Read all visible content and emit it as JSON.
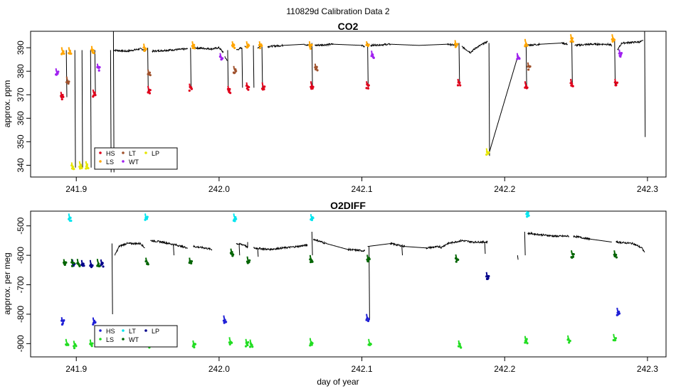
{
  "figure": {
    "title": "110829d   Calibration Data 2",
    "xlabel": "day of year"
  },
  "chart_data": [
    {
      "type": "line",
      "title": "CO2",
      "ylabel": "approx. ppm",
      "xlim": [
        241.868,
        242.313
      ],
      "ylim": [
        335,
        397
      ],
      "x_ticks": [
        "241.9",
        "242.0",
        "242.1",
        "242.2",
        "242.3"
      ],
      "y_ticks": [
        "340",
        "350",
        "360",
        "370",
        "380",
        "390"
      ],
      "legend": {
        "position": "bottom-left",
        "entries": [
          {
            "label": "HS",
            "color": "#e0001b"
          },
          {
            "label": "LT",
            "color": "#a0522d"
          },
          {
            "label": "LP",
            "color": "#e6e600"
          },
          {
            "label": "LS",
            "color": "#ffa500"
          },
          {
            "label": "WT",
            "color": "#a020f0"
          }
        ]
      },
      "series_trace": {
        "name": "sample",
        "color": "#000000",
        "segments": [
          [
            [
              241.926,
              389
            ],
            [
              241.935,
              388.5
            ],
            [
              241.945,
              389.5
            ],
            [
              241.949,
              389
            ]
          ],
          [
            [
              241.953,
              388.5
            ],
            [
              241.965,
              389
            ],
            [
              241.978,
              389.5
            ]
          ],
          [
            [
              241.982,
              390
            ],
            [
              241.995,
              389.5
            ],
            [
              242.0,
              390
            ],
            [
              242.003,
              388
            ]
          ],
          [
            [
              242.004,
              386
            ],
            [
              242.006,
              384.5
            ]
          ],
          [
            [
              242.012,
              389
            ],
            [
              242.016,
              390
            ]
          ],
          [
            [
              242.018,
              390.5
            ],
            [
              242.021,
              391
            ]
          ],
          [
            [
              242.027,
              390
            ],
            [
              242.03,
              391
            ]
          ],
          [
            [
              242.034,
              390.5
            ],
            [
              242.045,
              391
            ],
            [
              242.06,
              391.5
            ],
            [
              242.063,
              391
            ]
          ],
          [
            [
              242.067,
              391
            ],
            [
              242.08,
              391.5
            ],
            [
              242.1,
              391
            ],
            [
              242.102,
              390.5
            ]
          ],
          [
            [
              242.106,
              391
            ],
            [
              242.12,
              391.5
            ],
            [
              242.14,
              391
            ],
            [
              242.16,
              391.5
            ],
            [
              242.166,
              391
            ]
          ],
          [
            [
              242.17,
              390.5
            ],
            [
              242.176,
              388
            ],
            [
              242.18,
              390
            ],
            [
              242.186,
              392
            ],
            [
              242.188,
              392.5
            ]
          ],
          [
            [
              242.189,
              345
            ],
            [
              242.209,
              386
            ]
          ],
          [
            [
              242.215,
              391
            ],
            [
              242.225,
              391.5
            ],
            [
              242.24,
              392
            ],
            [
              242.244,
              391.5
            ]
          ],
          [
            [
              242.249,
              391
            ],
            [
              242.26,
              391.5
            ],
            [
              242.272,
              391.5
            ],
            [
              242.275,
              391
            ]
          ],
          [
            [
              242.279,
              389
            ],
            [
              242.282,
              392
            ],
            [
              242.295,
              392.5
            ],
            [
              242.297,
              393
            ]
          ]
        ],
        "drops": [
          [
            241.893,
            389,
            369
          ],
          [
            241.899,
            389,
            339
          ],
          [
            241.904,
            389,
            339
          ],
          [
            241.91,
            389,
            339
          ],
          [
            241.913,
            389,
            370
          ],
          [
            241.924,
            389,
            337
          ],
          [
            241.926,
            397,
            337
          ],
          [
            241.95,
            390,
            371
          ],
          [
            241.98,
            390,
            372
          ],
          [
            242.006,
            389,
            372
          ],
          [
            242.016,
            390,
            373
          ],
          [
            242.024,
            391,
            373
          ],
          [
            242.03,
            391,
            373
          ],
          [
            242.065,
            392,
            373
          ],
          [
            242.104,
            392,
            373
          ],
          [
            242.168,
            392,
            374
          ],
          [
            242.189,
            392,
            344
          ],
          [
            242.215,
            392,
            373
          ],
          [
            242.247,
            393,
            374
          ],
          [
            242.277,
            393,
            374
          ],
          [
            242.298,
            397,
            352
          ]
        ]
      },
      "series": [
        {
          "name": "HS",
          "color": "#e0001b",
          "x": [
            241.89,
            241.9125,
            241.951,
            241.98,
            242.007,
            242.02,
            242.031,
            242.065,
            242.104,
            242.168,
            242.215,
            242.247,
            242.278
          ],
          "y": [
            369,
            370,
            371.5,
            372.5,
            371.5,
            373,
            373,
            373.5,
            373.5,
            374.5,
            373.5,
            374.5,
            374.5
          ]
        },
        {
          "name": "LT",
          "color": "#a0522d",
          "x": [
            241.894,
            241.951,
            242.011,
            242.068,
            242.217
          ],
          "y": [
            375.5,
            378.5,
            380,
            381,
            381.5
          ]
        },
        {
          "name": "LP",
          "color": "#e6e600",
          "x": [
            241.8975,
            241.903,
            241.9075,
            242.188
          ],
          "y": [
            339,
            339.5,
            339.5,
            345
          ]
        },
        {
          "name": "LS",
          "color": "#ffa500",
          "x": [
            241.8905,
            241.8955,
            241.9115,
            241.948,
            241.982,
            242.01,
            242.02,
            242.029,
            242.064,
            242.104,
            242.166,
            242.215,
            242.247,
            242.276
          ],
          "y": [
            388,
            388,
            388.5,
            389.5,
            390.5,
            390.5,
            390.5,
            390.5,
            390.5,
            390.5,
            391,
            391.5,
            393.5,
            393.5
          ]
        },
        {
          "name": "WT",
          "color": "#a020f0",
          "x": [
            241.8865,
            241.9155,
            242.0015,
            242.1075,
            242.2095,
            242.281
          ],
          "y": [
            379,
            381,
            385.5,
            386.5,
            385.5,
            387
          ]
        }
      ]
    },
    {
      "type": "line",
      "title": "O2DIFF",
      "ylabel": "approx. per meg",
      "xlim": [
        241.868,
        242.313
      ],
      "ylim": [
        -945,
        -450
      ],
      "x_ticks": [
        "241.9",
        "242.0",
        "242.1",
        "242.2",
        "242.3"
      ],
      "y_ticks": [
        "-500",
        "-600",
        "-700",
        "-800",
        "-900"
      ],
      "legend": {
        "position": "bottom-left",
        "entries": [
          {
            "label": "HS",
            "color": "#1f1fd6"
          },
          {
            "label": "LT",
            "color": "#00e5ee"
          },
          {
            "label": "LP",
            "color": "#00008b"
          },
          {
            "label": "LS",
            "color": "#22dd22"
          },
          {
            "label": "WT",
            "color": "#006400"
          }
        ]
      },
      "series_trace": {
        "name": "sample",
        "color": "#000000",
        "segments": [
          [
            [
              241.927,
              -600
            ],
            [
              241.93,
              -570
            ],
            [
              241.935,
              -560
            ],
            [
              241.945,
              -560
            ],
            [
              241.948,
              -575
            ]
          ],
          [
            [
              241.952,
              -550
            ],
            [
              241.96,
              -555
            ],
            [
              241.97,
              -565
            ],
            [
              241.978,
              -575
            ]
          ],
          [
            [
              241.982,
              -570
            ],
            [
              241.99,
              -575
            ],
            [
              241.995,
              -580
            ]
          ],
          [
            [
              242.012,
              -560
            ],
            [
              242.018,
              -565
            ],
            [
              242.02,
              -575
            ],
            [
              242.02,
              -555
            ]
          ],
          [
            [
              242.024,
              -575
            ],
            [
              242.035,
              -580
            ],
            [
              242.045,
              -575
            ],
            [
              242.055,
              -570
            ],
            [
              242.062,
              -565
            ]
          ],
          [
            [
              242.066,
              -545
            ],
            [
              242.075,
              -560
            ],
            [
              242.09,
              -580
            ],
            [
              242.102,
              -585
            ]
          ],
          [
            [
              242.104,
              -570
            ],
            [
              242.12,
              -560
            ],
            [
              242.13,
              -570
            ],
            [
              242.145,
              -575
            ],
            [
              242.155,
              -570
            ]
          ],
          [
            [
              242.155,
              -575
            ],
            [
              242.16,
              -560
            ],
            [
              242.17,
              -550
            ],
            [
              242.178,
              -555
            ],
            [
              242.188,
              -555
            ]
          ],
          [
            [
              242.216,
              -525
            ],
            [
              242.225,
              -530
            ],
            [
              242.235,
              -535
            ],
            [
              242.245,
              -535
            ]
          ],
          [
            [
              242.248,
              -535
            ],
            [
              242.26,
              -545
            ],
            [
              242.275,
              -555
            ]
          ],
          [
            [
              242.278,
              -555
            ],
            [
              242.29,
              -560
            ],
            [
              242.296,
              -575
            ],
            [
              242.298,
              -590
            ]
          ]
        ],
        "drops": [
          [
            241.925,
            -560,
            -800
          ],
          [
            241.968,
            -565,
            -600
          ],
          [
            242.014,
            -560,
            -600
          ],
          [
            242.027,
            -575,
            -605
          ],
          [
            242.065,
            -520,
            -600
          ],
          [
            242.105,
            -570,
            -820
          ],
          [
            242.128,
            -570,
            -600
          ],
          [
            242.186,
            -555,
            -595
          ],
          [
            242.209,
            -600,
            -615
          ],
          [
            242.214,
            -520,
            -600
          ]
        ]
      },
      "series": [
        {
          "name": "HS",
          "color": "#1f1fd6",
          "x": [
            241.8905,
            241.9125,
            242.004,
            242.104,
            242.2795
          ],
          "y": [
            -828,
            -829,
            -822,
            -817,
            -796
          ]
        },
        {
          "name": "LT",
          "color": "#00e5ee",
          "x": [
            241.8955,
            241.949,
            242.011,
            242.065,
            242.216
          ],
          "y": [
            -476,
            -476,
            -476,
            -478,
            -462
          ]
        },
        {
          "name": "LP",
          "color": "#00008b",
          "x": [
            241.898,
            241.9045,
            241.9105,
            241.918,
            242.188
          ],
          "y": [
            -632,
            -634,
            -634,
            -632,
            -675
          ]
        },
        {
          "name": "LS",
          "color": "#22dd22",
          "x": [
            241.8935,
            241.899,
            241.9105,
            241.9515,
            241.9825,
            242.008,
            242.0195,
            242.0225,
            242.0645,
            242.1055,
            242.1685,
            242.215,
            242.245,
            242.277
          ],
          "y": [
            -902,
            -908,
            -904,
            -907,
            -907,
            -896,
            -902,
            -904,
            -899,
            -902,
            -907,
            -892,
            -890,
            -885
          ]
        },
        {
          "name": "WT",
          "color": "#006400",
          "x": [
            241.892,
            241.8975,
            241.9015,
            241.9155,
            241.9495,
            241.98,
            242.009,
            242.0205,
            242.0645,
            242.1045,
            242.1665,
            242.2475,
            242.2775
          ],
          "y": [
            -631,
            -630,
            -630,
            -630,
            -626,
            -626,
            -595,
            -622,
            -617,
            -616,
            -615,
            -601,
            -601
          ]
        }
      ]
    }
  ]
}
